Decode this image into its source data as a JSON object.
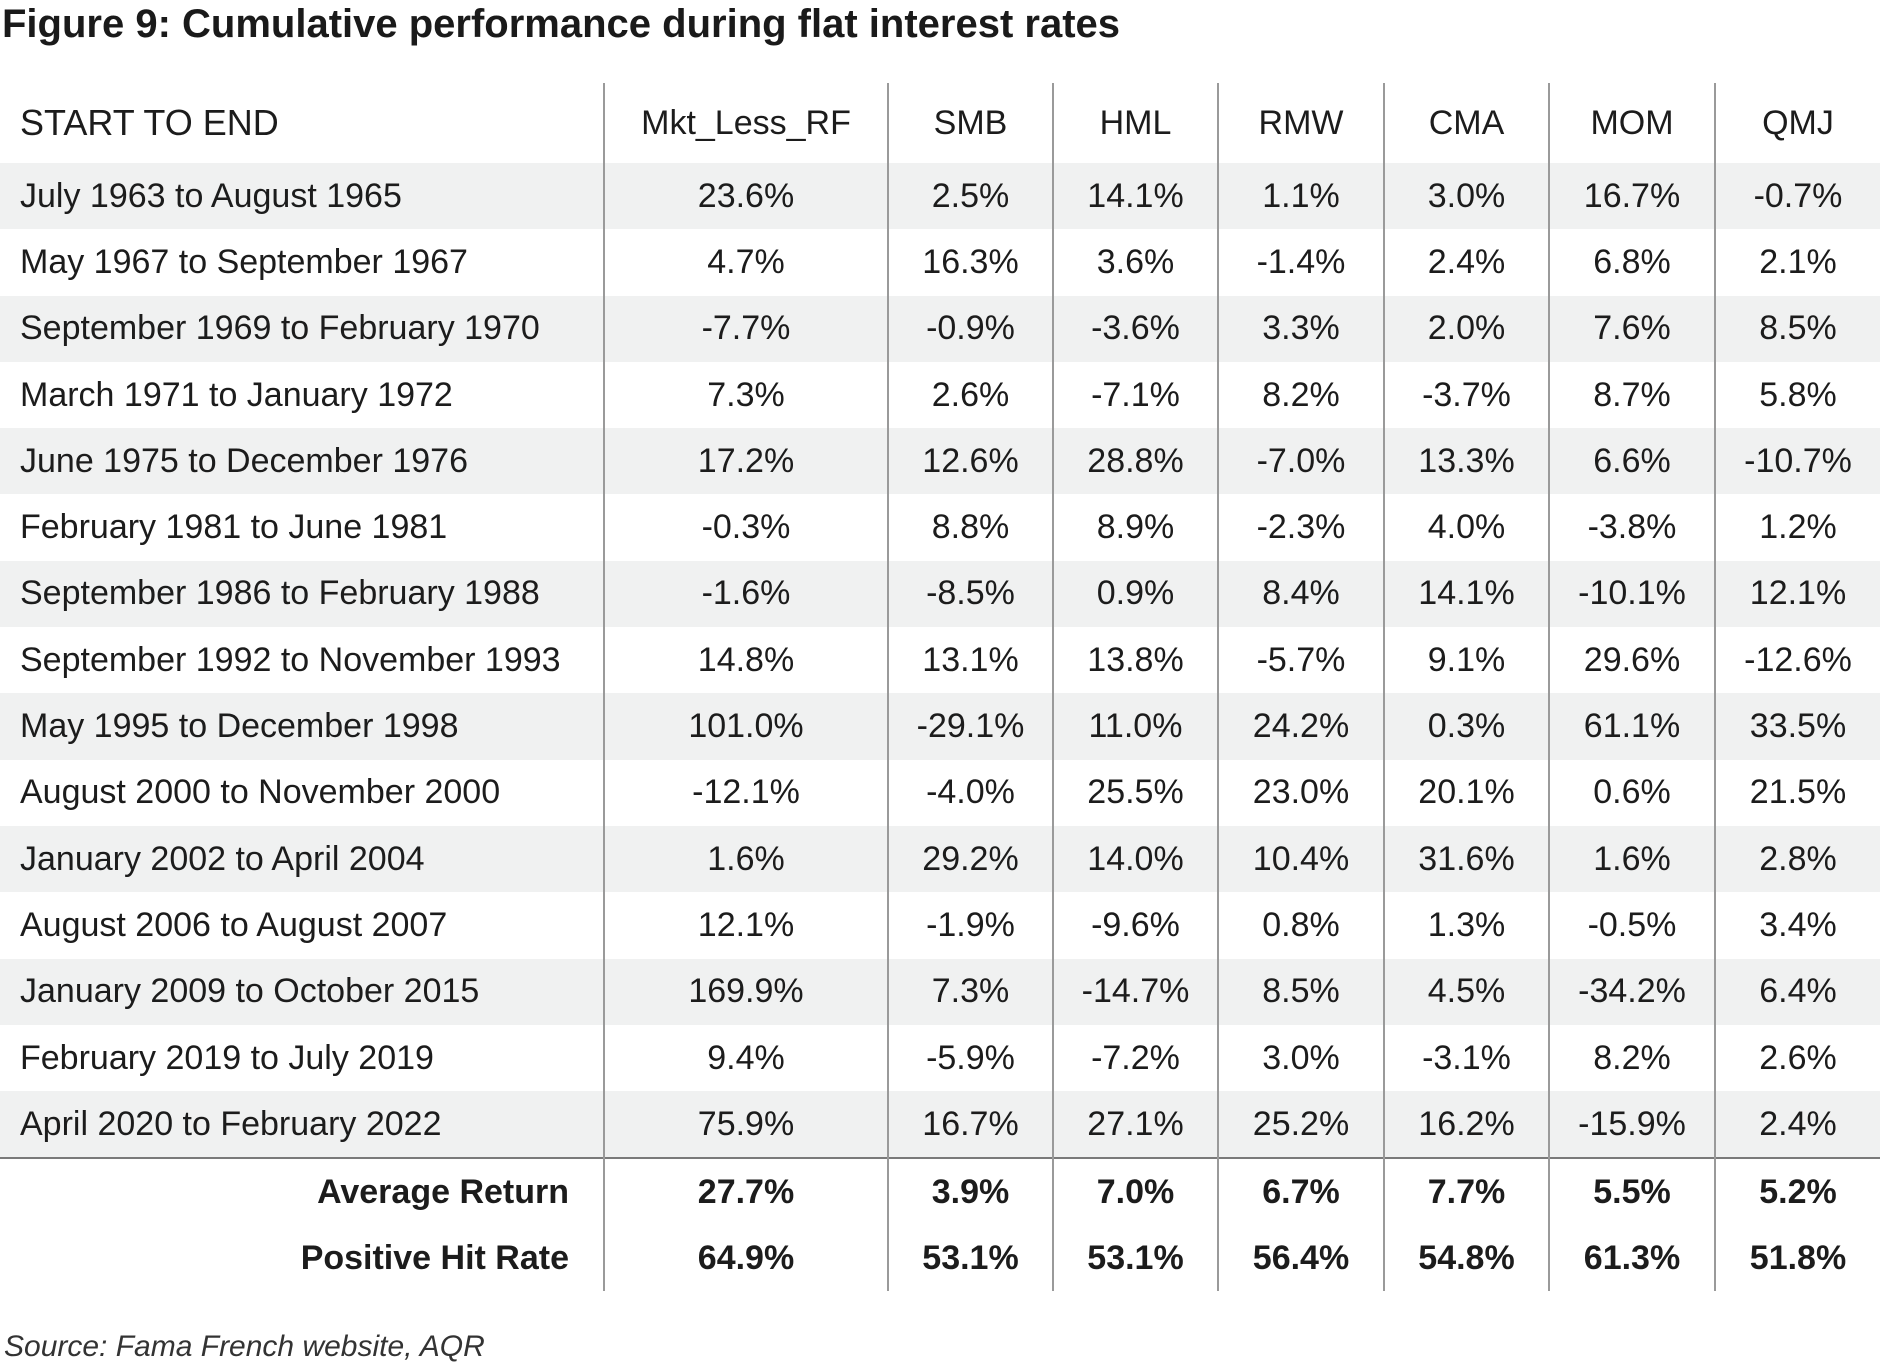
{
  "title": "Figure 9: Cumulative performance during flat interest rates",
  "table": {
    "headers": [
      "START TO END",
      "Mkt_Less_RF",
      "SMB",
      "HML",
      "RMW",
      "CMA",
      "MOM",
      "QMJ"
    ],
    "rows": [
      [
        "July 1963 to August 1965",
        "23.6%",
        "2.5%",
        "14.1%",
        "1.1%",
        "3.0%",
        "16.7%",
        "-0.7%"
      ],
      [
        "May 1967 to September 1967",
        "4.7%",
        "16.3%",
        "3.6%",
        "-1.4%",
        "2.4%",
        "6.8%",
        "2.1%"
      ],
      [
        "September 1969 to February 1970",
        "-7.7%",
        "-0.9%",
        "-3.6%",
        "3.3%",
        "2.0%",
        "7.6%",
        "8.5%"
      ],
      [
        "March 1971 to January 1972",
        "7.3%",
        "2.6%",
        "-7.1%",
        "8.2%",
        "-3.7%",
        "8.7%",
        "5.8%"
      ],
      [
        "June 1975 to December 1976",
        "17.2%",
        "12.6%",
        "28.8%",
        "-7.0%",
        "13.3%",
        "6.6%",
        "-10.7%"
      ],
      [
        "February 1981 to June 1981",
        "-0.3%",
        "8.8%",
        "8.9%",
        "-2.3%",
        "4.0%",
        "-3.8%",
        "1.2%"
      ],
      [
        "September 1986 to February 1988",
        "-1.6%",
        "-8.5%",
        "0.9%",
        "8.4%",
        "14.1%",
        "-10.1%",
        "12.1%"
      ],
      [
        "September 1992 to November 1993",
        "14.8%",
        "13.1%",
        "13.8%",
        "-5.7%",
        "9.1%",
        "29.6%",
        "-12.6%"
      ],
      [
        "May 1995 to December 1998",
        "101.0%",
        "-29.1%",
        "11.0%",
        "24.2%",
        "0.3%",
        "61.1%",
        "33.5%"
      ],
      [
        "August 2000 to November 2000",
        "-12.1%",
        "-4.0%",
        "25.5%",
        "23.0%",
        "20.1%",
        "0.6%",
        "21.5%"
      ],
      [
        "January 2002 to April 2004",
        "1.6%",
        "29.2%",
        "14.0%",
        "10.4%",
        "31.6%",
        "1.6%",
        "2.8%"
      ],
      [
        "August 2006 to August 2007",
        "12.1%",
        "-1.9%",
        "-9.6%",
        "0.8%",
        "1.3%",
        "-0.5%",
        "3.4%"
      ],
      [
        "January 2009 to October 2015",
        "169.9%",
        "7.3%",
        "-14.7%",
        "8.5%",
        "4.5%",
        "-34.2%",
        "6.4%"
      ],
      [
        "February 2019 to July 2019",
        "9.4%",
        "-5.9%",
        "-7.2%",
        "3.0%",
        "-3.1%",
        "8.2%",
        "2.6%"
      ],
      [
        "April 2020 to February 2022",
        "75.9%",
        "16.7%",
        "27.1%",
        "25.2%",
        "16.2%",
        "-15.9%",
        "2.4%"
      ]
    ],
    "summary": [
      [
        "Average Return",
        "27.7%",
        "3.9%",
        "7.0%",
        "6.7%",
        "7.7%",
        "5.5%",
        "5.2%"
      ],
      [
        "Positive Hit Rate",
        "64.9%",
        "53.1%",
        "53.1%",
        "56.4%",
        "54.8%",
        "61.3%",
        "51.8%"
      ]
    ]
  },
  "source": "Source: Fama French website, AQR"
}
